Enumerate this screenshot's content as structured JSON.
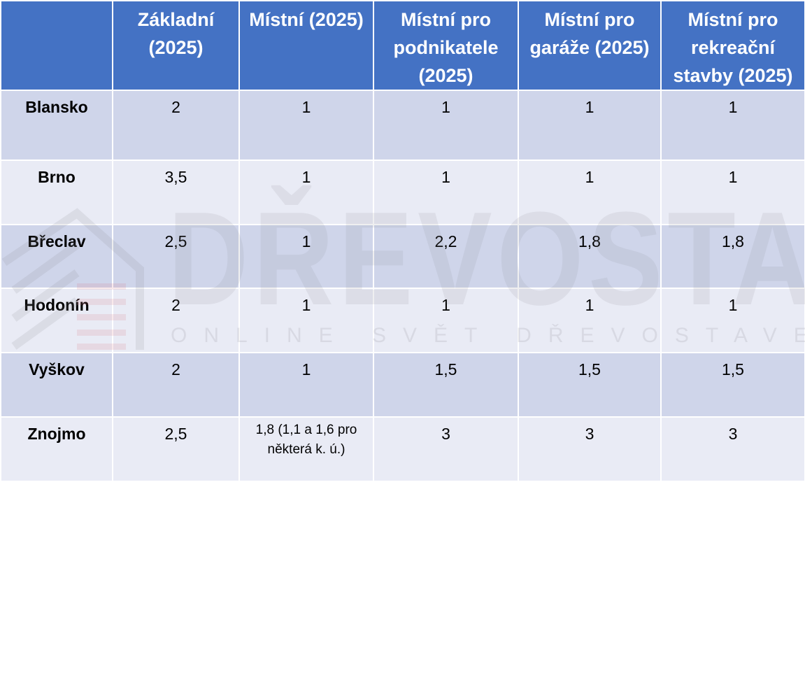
{
  "table": {
    "headers": [
      "",
      "Základní (2025)",
      "Místní (2025)",
      "Místní pro podnikatele (2025)",
      "Místní pro garáže (2025)",
      "Místní pro rekreační stavby (2025)"
    ],
    "rows": [
      {
        "city": "Blansko",
        "values": [
          "2",
          "1",
          "1",
          "1",
          "1"
        ]
      },
      {
        "city": "Brno",
        "values": [
          "3,5",
          "1",
          "1",
          "1",
          "1"
        ]
      },
      {
        "city": "Břeclav",
        "values": [
          "2,5",
          "1",
          "2,2",
          "1,8",
          "1,8"
        ]
      },
      {
        "city": "Hodonín",
        "values": [
          "2",
          "1",
          "1",
          "1",
          "1"
        ]
      },
      {
        "city": "Vyškov",
        "values": [
          "2",
          "1",
          "1,5",
          "1,5",
          "1,5"
        ]
      },
      {
        "city": "Znojmo",
        "values": [
          "2,5",
          "1,8 (1,1 a 1,6 pro některá k. ú.)",
          "3",
          "3",
          "3"
        ]
      }
    ]
  },
  "watermark": {
    "brand": "DŘEVOSTAVITEL",
    "tagline": "ONLINE SVĚT DŘEVOSTAVEB"
  },
  "colors": {
    "header_bg": "#4472c4",
    "row_odd": "#cfd5ea",
    "row_even": "#e9ebf5"
  }
}
